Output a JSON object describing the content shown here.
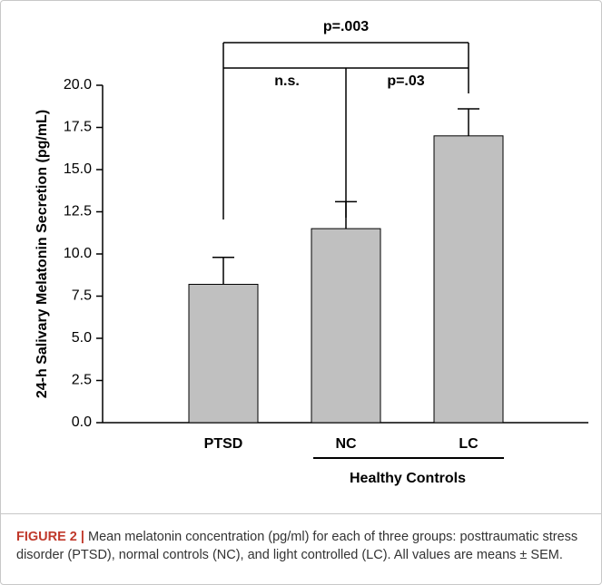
{
  "chart_data": {
    "type": "bar",
    "ylabel": "24-h Salivary Melatonin Secretion (pg/mL)",
    "categories": [
      "PTSD",
      "NC",
      "LC"
    ],
    "values": [
      8.2,
      11.5,
      17.0
    ],
    "errors": [
      1.6,
      1.6,
      1.6
    ],
    "color": "#c0c0c0",
    "ylim": [
      0,
      20
    ],
    "yticks": [
      {
        "value": 0,
        "label": "0.0"
      },
      {
        "value": 2.5,
        "label": "2.5"
      },
      {
        "value": 5,
        "label": "5.0"
      },
      {
        "value": 7.5,
        "label": "7.5"
      },
      {
        "value": 10,
        "label": "10.0"
      },
      {
        "value": 12.5,
        "label": "12.5"
      },
      {
        "value": 15,
        "label": "15.0"
      },
      {
        "value": 17.5,
        "label": "17.5"
      },
      {
        "value": 20,
        "label": "20.0"
      }
    ],
    "group_label": "Healthy Controls",
    "annotations": [
      "p=.003",
      "n.s.",
      "p=.03"
    ]
  },
  "caption": {
    "label": "FIGURE 2 |",
    "text": " Mean melatonin concentration (pg/ml) for each of three groups: posttraumatic stress disorder (PTSD), normal controls (NC), and light controlled (LC). All values are means ± SEM."
  }
}
